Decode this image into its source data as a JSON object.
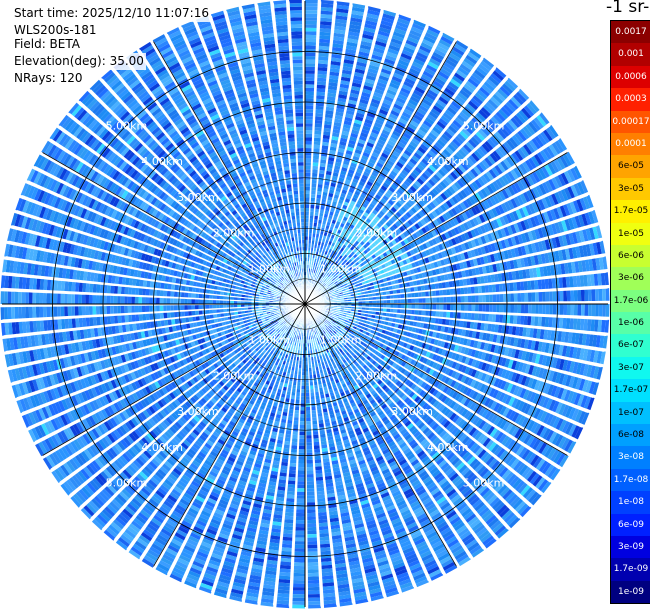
{
  "header": {
    "start_time": "Start time: 2025/12/10 11:07:16",
    "instrument": "WLS200s-181",
    "field": "Field: BETA",
    "elevation": "Elevation(deg): 35.00",
    "nrays": "NRays: 120"
  },
  "colorbar": {
    "units_label": "-1 sr-",
    "entries": [
      {
        "label": "0.0017",
        "color": "#8b0000"
      },
      {
        "label": "0.001",
        "color": "#b20000"
      },
      {
        "label": "0.0006",
        "color": "#dd0000"
      },
      {
        "label": "0.0003",
        "color": "#ff2000"
      },
      {
        "label": "0.00017",
        "color": "#ff5500"
      },
      {
        "label": "0.0001",
        "color": "#ff7f00"
      },
      {
        "label": "6e-05",
        "color": "#ffa400"
      },
      {
        "label": "3e-05",
        "color": "#ffc800"
      },
      {
        "label": "1.7e-05",
        "color": "#fff000"
      },
      {
        "label": "1e-05",
        "color": "#f0ff10"
      },
      {
        "label": "6e-06",
        "color": "#c8ff30"
      },
      {
        "label": "3e-06",
        "color": "#a0ff58"
      },
      {
        "label": "1.7e-06",
        "color": "#7cff80"
      },
      {
        "label": "1e-06",
        "color": "#58ffa8"
      },
      {
        "label": "6e-07",
        "color": "#30ffd0"
      },
      {
        "label": "3e-07",
        "color": "#10f8ef"
      },
      {
        "label": "1.7e-07",
        "color": "#00e0ff"
      },
      {
        "label": "1e-07",
        "color": "#00c0ff"
      },
      {
        "label": "6e-08",
        "color": "#00a0ff"
      },
      {
        "label": "3e-08",
        "color": "#0080ff"
      },
      {
        "label": "1.7e-08",
        "color": "#0060ff"
      },
      {
        "label": "1e-08",
        "color": "#0040ff"
      },
      {
        "label": "6e-09",
        "color": "#0020ff"
      },
      {
        "label": "3e-09",
        "color": "#0000e0"
      },
      {
        "label": "1.7e-09",
        "color": "#0000b0"
      },
      {
        "label": "1e-09",
        "color": "#000080"
      }
    ]
  },
  "chart_data": {
    "type": "heatmap",
    "projection": "polar PPI",
    "field": "BETA",
    "elevation_deg": 35.0,
    "nrays": 120,
    "range_rings": [
      {
        "range_km": 1.0,
        "label": "1.00km"
      },
      {
        "range_km": 2.0,
        "label": "2.00km"
      },
      {
        "range_km": 3.0,
        "label": "3.00km"
      },
      {
        "range_km": 4.0,
        "label": "4.00km"
      },
      {
        "range_km": 5.0,
        "label": "5.00km"
      }
    ],
    "max_range_km": 6.0,
    "spoke_interval_deg": 30,
    "dominant_value_range": [
      "3e-08",
      "6e-08"
    ],
    "enhanced_region": {
      "range_km": [
        1.2,
        2.2
      ],
      "azimuth_deg": [
        20,
        70
      ],
      "value": "1.7e-07"
    },
    "near_field_range_km": 1.0
  }
}
